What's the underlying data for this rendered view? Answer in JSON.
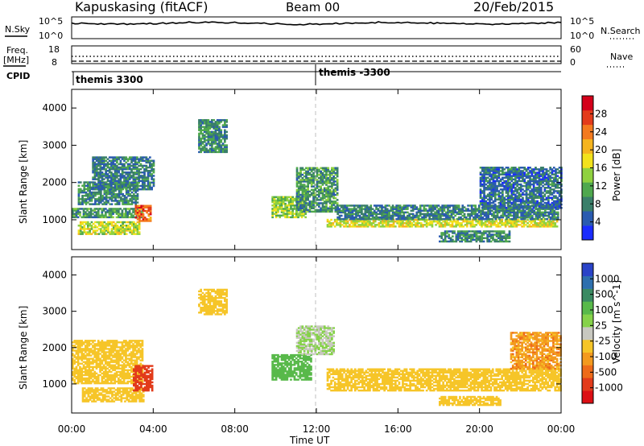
{
  "header": {
    "station": "Kapuskasing (fitACF)",
    "beam": "Beam 00",
    "date": "20/Feb/2015"
  },
  "top_panels": {
    "nsky_label": "N.Sky",
    "nsky_ticks": [
      "10^5",
      "10^0"
    ],
    "nsearch_label": "N.Search",
    "nsearch_ticks": [
      "10^5",
      "10^0"
    ],
    "freq_label": "Freq.",
    "freq_unit": "[MHz]",
    "freq_ticks": [
      "18",
      "8"
    ],
    "nave_label": "Nave",
    "nave_ticks": [
      "60",
      "0"
    ],
    "cpid_label": "CPID",
    "cpid_entries": [
      {
        "label": "themis 3300",
        "start_hour": 0
      },
      {
        "label": "themis -3300",
        "start_hour": 12
      }
    ]
  },
  "xaxis": {
    "label": "Time UT",
    "ticks": [
      "00:00",
      "04:00",
      "08:00",
      "12:00",
      "16:00",
      "20:00",
      "00:00"
    ],
    "range_hours": [
      0,
      24
    ]
  },
  "colors": {
    "power_scale": [
      "#1a2cff",
      "#2a5bb0",
      "#3a7f6a",
      "#4fa84e",
      "#8fd13f",
      "#f2e21c",
      "#f5b41e",
      "#f47a1f",
      "#e33b1b",
      "#d4001a"
    ],
    "velocity_scale": [
      "#2a43c8",
      "#2e6fae",
      "#3a8a62",
      "#58b94a",
      "#86d24a",
      "#c8c8c0",
      "#f6c528",
      "#f39a1f",
      "#ee6b1a",
      "#e23b1b",
      "#dc0f14"
    ]
  },
  "chart_data": [
    {
      "type": "heatmap",
      "name": "power",
      "ylabel": "Slant Range [km]",
      "yticks": [
        "1000",
        "2000",
        "3000",
        "4000"
      ],
      "ylim": [
        200,
        4500
      ],
      "colorbar_label": "Power [dB]",
      "colorbar_ticks": [
        "4",
        "8",
        "12",
        "16",
        "20",
        "24",
        "28"
      ],
      "color_range": [
        0,
        30
      ],
      "regions": [
        {
          "t0": 0.0,
          "t1": 3.5,
          "r0": 1050,
          "r1": 1300,
          "v": 9
        },
        {
          "t0": 0.3,
          "t1": 3.2,
          "r0": 1400,
          "r1": 2000,
          "v": 8
        },
        {
          "t0": 1.0,
          "t1": 4.0,
          "r0": 1800,
          "r1": 2700,
          "v": 7
        },
        {
          "t0": 0.3,
          "t1": 3.3,
          "r0": 600,
          "r1": 950,
          "v": 15
        },
        {
          "t0": 3.1,
          "t1": 3.9,
          "r0": 950,
          "r1": 1400,
          "v": 24
        },
        {
          "t0": 6.2,
          "t1": 7.6,
          "r0": 2800,
          "r1": 3700,
          "v": 8
        },
        {
          "t0": 9.8,
          "t1": 11.5,
          "r0": 1050,
          "r1": 1600,
          "v": 13
        },
        {
          "t0": 11.0,
          "t1": 13.0,
          "r0": 1200,
          "r1": 2400,
          "v": 9
        },
        {
          "t0": 12.5,
          "t1": 23.8,
          "r0": 800,
          "r1": 1000,
          "v": 16
        },
        {
          "t0": 13.0,
          "t1": 23.8,
          "r0": 1000,
          "r1": 1400,
          "v": 7
        },
        {
          "t0": 18.0,
          "t1": 21.5,
          "r0": 400,
          "r1": 700,
          "v": 8
        },
        {
          "t0": 20.0,
          "t1": 24.0,
          "r0": 1300,
          "r1": 2400,
          "v": 6
        }
      ]
    },
    {
      "type": "heatmap",
      "name": "velocity",
      "ylabel": "Slant Range [km]",
      "yticks": [
        "1000",
        "2000",
        "3000",
        "4000"
      ],
      "ylim": [
        200,
        4500
      ],
      "colorbar_label": "Velocity [m s^-1]",
      "colorbar_ticks": [
        "1000",
        "500",
        "100",
        "25",
        "-25",
        "-100",
        "-500",
        "-1000"
      ],
      "regions": [
        {
          "t0": 0.0,
          "t1": 3.5,
          "r0": 1000,
          "r1": 2200,
          "v": 0
        },
        {
          "t0": 0.5,
          "t1": 3.5,
          "r0": 500,
          "r1": 900,
          "v": 0
        },
        {
          "t0": 3.0,
          "t1": 3.9,
          "r0": 800,
          "r1": 1500,
          "v": -400
        },
        {
          "t0": 6.2,
          "t1": 7.6,
          "r0": 2900,
          "r1": 3600,
          "v": 0
        },
        {
          "t0": 9.8,
          "t1": 11.7,
          "r0": 1100,
          "r1": 1800,
          "v": 220
        },
        {
          "t0": 11.0,
          "t1": 12.8,
          "r0": 1800,
          "r1": 2600,
          "v": 50
        },
        {
          "t0": 12.5,
          "t1": 24.0,
          "r0": 800,
          "r1": 1400,
          "v": 0
        },
        {
          "t0": 18.0,
          "t1": 21.0,
          "r0": 400,
          "r1": 650,
          "v": 0
        },
        {
          "t0": 21.5,
          "t1": 24.0,
          "r0": 1400,
          "r1": 2400,
          "v": -60
        }
      ]
    }
  ]
}
